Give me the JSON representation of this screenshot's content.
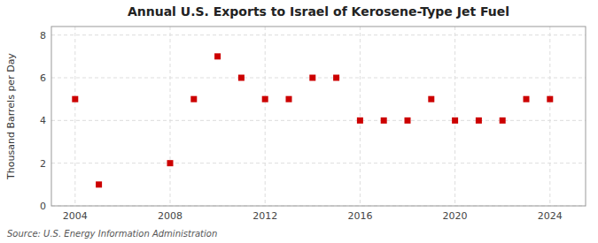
{
  "chart_data": {
    "type": "scatter",
    "title": "Annual U.S. Exports to Israel of Kerosene-Type Jet Fuel",
    "ylabel": "Thousand Barrels per Day",
    "source": "Source: U.S. Energy Information Administration",
    "x": [
      2004,
      2005,
      2008,
      2009,
      2010,
      2011,
      2012,
      2013,
      2014,
      2015,
      2016,
      2017,
      2018,
      2019,
      2020,
      2021,
      2022,
      2023,
      2024
    ],
    "values": [
      5,
      1,
      2,
      5,
      7,
      6,
      5,
      5,
      6,
      6,
      4,
      4,
      4,
      5,
      4,
      4,
      4,
      5,
      5
    ],
    "color": "#cc0000",
    "marker": "square",
    "xlim": [
      2003.0,
      2025.5
    ],
    "ylim": [
      0,
      8.4
    ],
    "xticks": [
      2004,
      2008,
      2012,
      2016,
      2020,
      2024
    ],
    "yticks": [
      0,
      2,
      4,
      6,
      8
    ],
    "grid": true
  }
}
